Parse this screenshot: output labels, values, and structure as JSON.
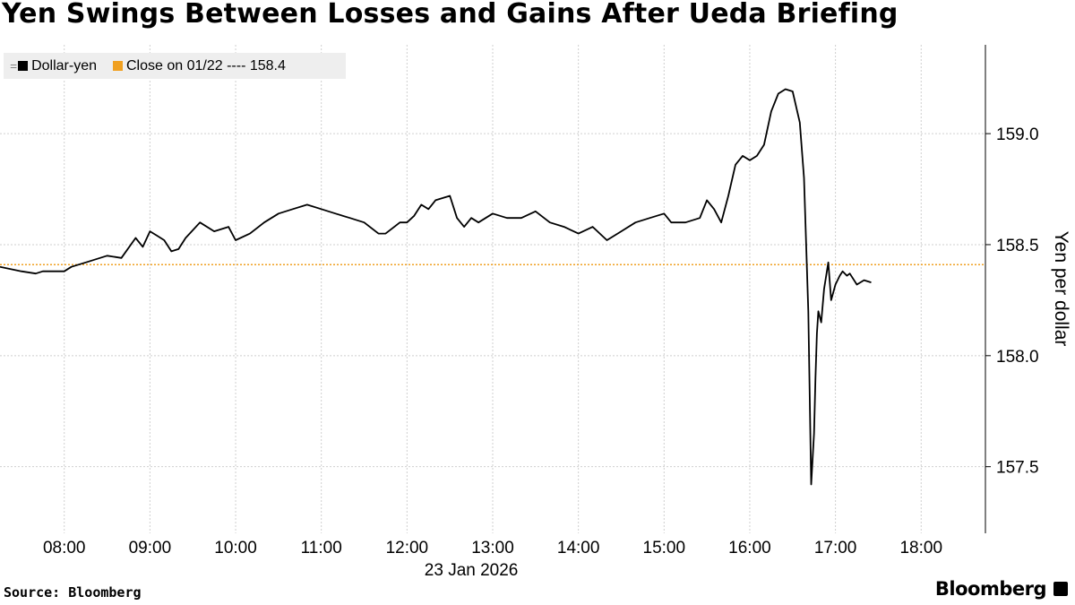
{
  "title": "Yen Swings Between Losses and Gains After Ueda Briefing",
  "footer": {
    "source": "Source: Bloomberg",
    "brand": "Bloomberg"
  },
  "legend": {
    "items": [
      {
        "label": "Dollar-yen",
        "color": "#000000"
      },
      {
        "label": "Close on 01/22 ---- 158.4",
        "color": "#f0a020"
      }
    ]
  },
  "chart_data": {
    "type": "line",
    "title": "Yen Swings Between Losses and Gains After Ueda Briefing",
    "xlabel": "23 Jan 2026",
    "ylabel": "Yen per dollar",
    "x_ticks": [
      "08:00",
      "09:00",
      "10:00",
      "11:00",
      "12:00",
      "13:00",
      "14:00",
      "15:00",
      "16:00",
      "17:00",
      "18:00"
    ],
    "y_ticks": [
      157.5,
      158.0,
      158.5,
      159.0
    ],
    "y_tick_labels": [
      "157.5",
      "158.0",
      "158.5",
      "159.0"
    ],
    "xlim": [
      "07:15",
      "18:45"
    ],
    "ylim": [
      157.2,
      159.4
    ],
    "grid": true,
    "y_axis_side": "right",
    "legend_position": "top-left",
    "reference_line": {
      "label": "Close on 01/22",
      "value": 158.41,
      "color": "#f0a020",
      "style": "dotted"
    },
    "series": [
      {
        "name": "Dollar-yen",
        "color": "#000000",
        "x": [
          "07:15",
          "07:30",
          "07:40",
          "07:45",
          "08:00",
          "08:05",
          "08:15",
          "08:30",
          "08:40",
          "08:50",
          "08:55",
          "09:00",
          "09:05",
          "09:10",
          "09:15",
          "09:20",
          "09:25",
          "09:35",
          "09:45",
          "09:55",
          "10:00",
          "10:10",
          "10:20",
          "10:30",
          "10:40",
          "10:50",
          "11:00",
          "11:10",
          "11:20",
          "11:30",
          "11:40",
          "11:45",
          "11:55",
          "12:00",
          "12:05",
          "12:10",
          "12:15",
          "12:20",
          "12:30",
          "12:35",
          "12:40",
          "12:45",
          "12:50",
          "13:00",
          "13:10",
          "13:20",
          "13:30",
          "13:40",
          "13:50",
          "14:00",
          "14:10",
          "14:15",
          "14:20",
          "14:30",
          "14:40",
          "14:50",
          "15:00",
          "15:05",
          "15:15",
          "15:25",
          "15:30",
          "15:35",
          "15:40",
          "15:45",
          "15:50",
          "15:55",
          "16:00",
          "16:05",
          "16:10",
          "16:15",
          "16:20",
          "16:25",
          "16:30",
          "16:35",
          "16:38",
          "16:41",
          "16:43",
          "16:45",
          "16:46",
          "16:47",
          "16:48",
          "16:50",
          "16:52",
          "16:55",
          "16:57",
          "17:00",
          "17:03",
          "17:05",
          "17:08",
          "17:10",
          "17:15",
          "17:20",
          "17:25"
        ],
        "values": [
          158.4,
          158.38,
          158.37,
          158.38,
          158.38,
          158.4,
          158.42,
          158.45,
          158.44,
          158.53,
          158.49,
          158.56,
          158.54,
          158.52,
          158.47,
          158.48,
          158.53,
          158.6,
          158.56,
          158.58,
          158.52,
          158.55,
          158.6,
          158.64,
          158.66,
          158.68,
          158.66,
          158.64,
          158.62,
          158.6,
          158.55,
          158.55,
          158.6,
          158.6,
          158.63,
          158.68,
          158.66,
          158.7,
          158.72,
          158.62,
          158.58,
          158.62,
          158.6,
          158.64,
          158.62,
          158.62,
          158.65,
          158.6,
          158.58,
          158.55,
          158.58,
          158.55,
          158.52,
          158.56,
          158.6,
          158.62,
          158.64,
          158.6,
          158.6,
          158.62,
          158.7,
          158.66,
          158.6,
          158.72,
          158.86,
          158.9,
          158.88,
          158.9,
          158.95,
          159.1,
          159.18,
          159.2,
          159.19,
          159.05,
          158.8,
          158.2,
          157.42,
          157.65,
          157.9,
          158.1,
          158.2,
          158.15,
          158.3,
          158.42,
          158.25,
          158.32,
          158.36,
          158.38,
          158.36,
          158.37,
          158.32,
          158.34,
          158.33
        ]
      }
    ]
  }
}
